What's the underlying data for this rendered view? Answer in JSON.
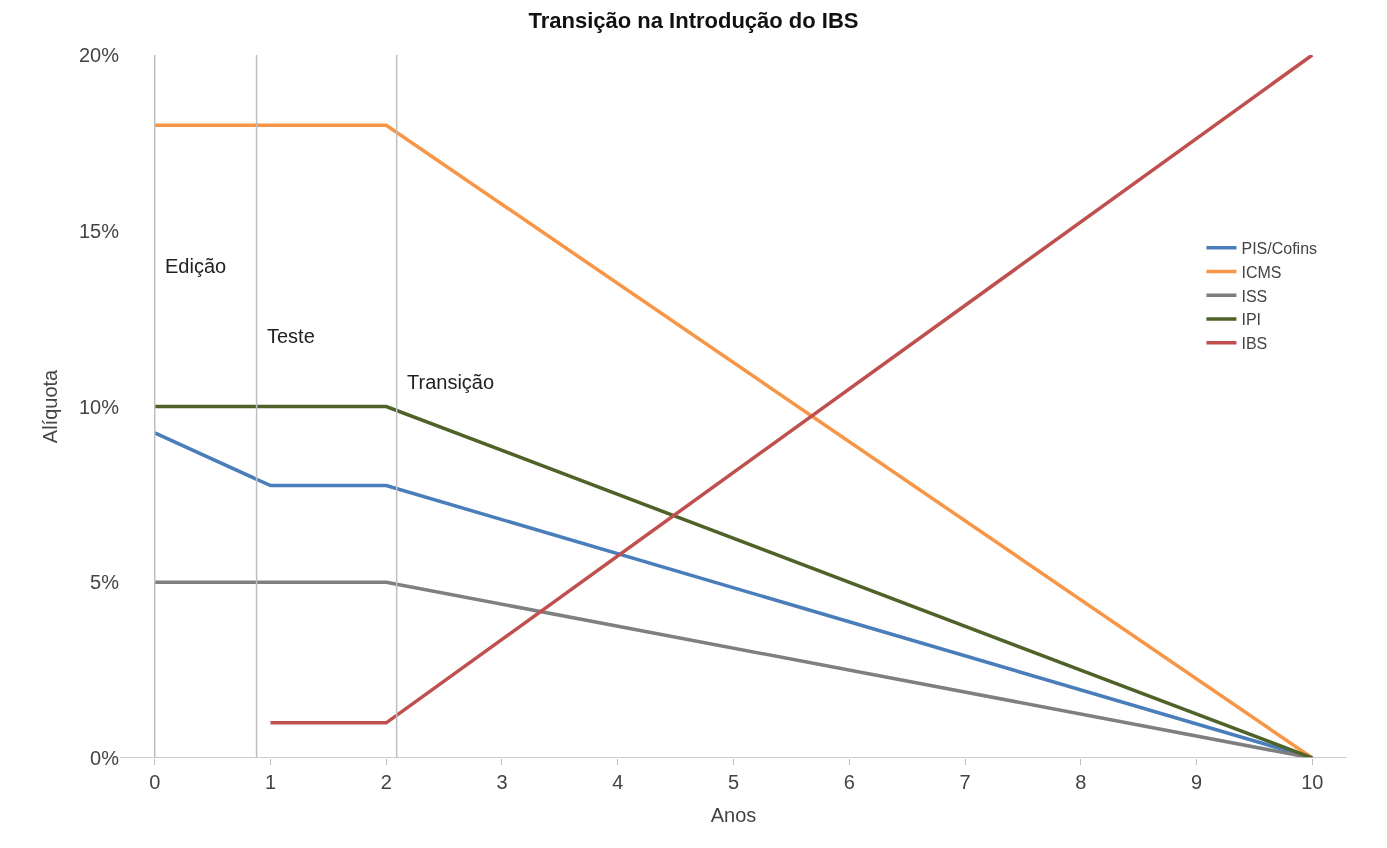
{
  "chart_data": {
    "type": "line",
    "title": "Transição na Introdução do IBS",
    "xlabel": "Anos",
    "ylabel": "Alíquota",
    "xlim": [
      -0.3,
      10.3
    ],
    "xticks": [
      0,
      1,
      2,
      3,
      4,
      5,
      6,
      7,
      8,
      9,
      10
    ],
    "ylim": [
      0,
      20
    ],
    "yticks": [
      {
        "value": 0,
        "label": "0%"
      },
      {
        "value": 5,
        "label": "5%"
      },
      {
        "value": 10,
        "label": "10%"
      },
      {
        "value": 15,
        "label": "15%"
      },
      {
        "value": 20,
        "label": "20%"
      }
    ],
    "legend": "right",
    "marker": "none",
    "line_style": "solid",
    "series": [
      {
        "name": "PIS/Cofins",
        "color": "#4a7ebb",
        "x": [
          0,
          1,
          2,
          10
        ],
        "values": [
          9.25,
          7.75,
          7.75,
          0
        ]
      },
      {
        "name": "ICMS",
        "color": "#f79646",
        "x": [
          0,
          2,
          10
        ],
        "values": [
          18,
          18,
          0
        ]
      },
      {
        "name": "ISS",
        "color": "#7f7f7f",
        "x": [
          0,
          2,
          10
        ],
        "values": [
          5,
          5,
          0
        ]
      },
      {
        "name": "IPI",
        "color": "#4f6228",
        "x": [
          0,
          2,
          10
        ],
        "values": [
          10,
          10,
          0
        ]
      },
      {
        "name": "IBS",
        "color": "#c0504d",
        "x": [
          1,
          2,
          10
        ],
        "values": [
          1,
          1,
          20
        ]
      }
    ],
    "ref_lines": [
      {
        "axis": "x",
        "value": 0,
        "label": "Edição",
        "color": "#bfbfbf"
      },
      {
        "axis": "x",
        "value": 0.88,
        "label": "Teste",
        "color": "#bfbfbf"
      },
      {
        "axis": "x",
        "value": 2.09,
        "label": "Transição",
        "color": "#bfbfbf"
      }
    ]
  }
}
